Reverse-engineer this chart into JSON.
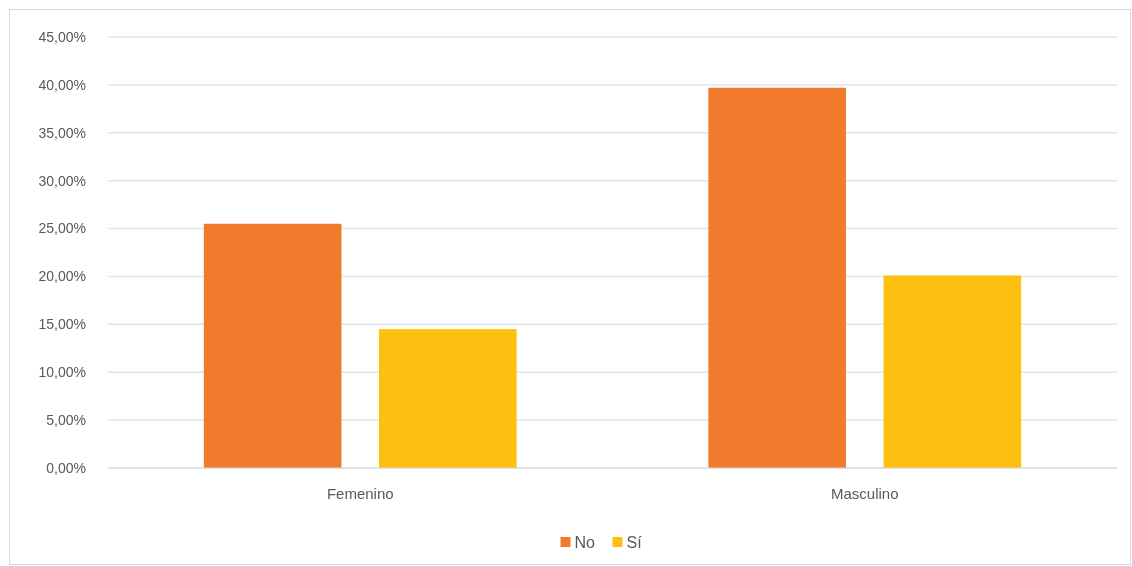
{
  "chart_data": {
    "type": "bar",
    "categories": [
      "Femenino",
      "Masculino"
    ],
    "series": [
      {
        "name": "No",
        "color": "#f07b2c",
        "values": [
          25.5,
          39.7
        ]
      },
      {
        "name": "Sí",
        "color": "#fdc010",
        "values": [
          14.5,
          20.1
        ]
      }
    ],
    "ylim": [
      0,
      45
    ],
    "yticks": [
      {
        "value": 0,
        "label": "0,00%"
      },
      {
        "value": 5,
        "label": "5,00%"
      },
      {
        "value": 10,
        "label": "10,00%"
      },
      {
        "value": 15,
        "label": "15,00%"
      },
      {
        "value": 20,
        "label": "20,00%"
      },
      {
        "value": 25,
        "label": "25,00%"
      },
      {
        "value": 30,
        "label": "30,00%"
      },
      {
        "value": 35,
        "label": "35,00%"
      },
      {
        "value": 40,
        "label": "40,00%"
      },
      {
        "value": 45,
        "label": "45,00%"
      }
    ],
    "grid": "y",
    "legend": "bottom"
  }
}
